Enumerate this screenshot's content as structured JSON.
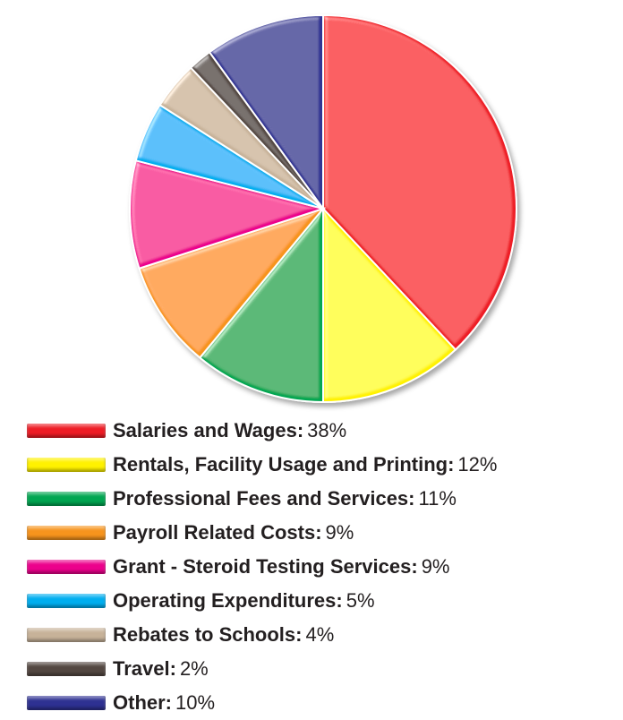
{
  "chart_data": {
    "type": "pie",
    "title": "",
    "slices": [
      {
        "label": "Salaries and Wages:",
        "value_text": "38%",
        "value": 38,
        "color": "#ee1c25"
      },
      {
        "label": "Rentals, Facility Usage and Printing:",
        "value_text": "12%",
        "value": 12,
        "color": "#fff200"
      },
      {
        "label": "Professional Fees and Services:",
        "value_text": "11%",
        "value": 11,
        "color": "#00a651"
      },
      {
        "label": "Payroll Related Costs:",
        "value_text": "9%",
        "value": 9,
        "color": "#f7941d"
      },
      {
        "label": "Grant - Steroid Testing Services:",
        "value_text": "9%",
        "value": 9,
        "color": "#ec008c"
      },
      {
        "label": "Operating Expenditures:",
        "value_text": "5%",
        "value": 5,
        "color": "#00aeef"
      },
      {
        "label": "Rebates to Schools:",
        "value_text": "4%",
        "value": 4,
        "color": "#c7b299"
      },
      {
        "label": "Travel:",
        "value_text": "2%",
        "value": 2,
        "color": "#534741"
      },
      {
        "label": "Other:",
        "value_text": "10%",
        "value": 10,
        "color": "#2e3192"
      }
    ],
    "legend_position": "bottom"
  }
}
